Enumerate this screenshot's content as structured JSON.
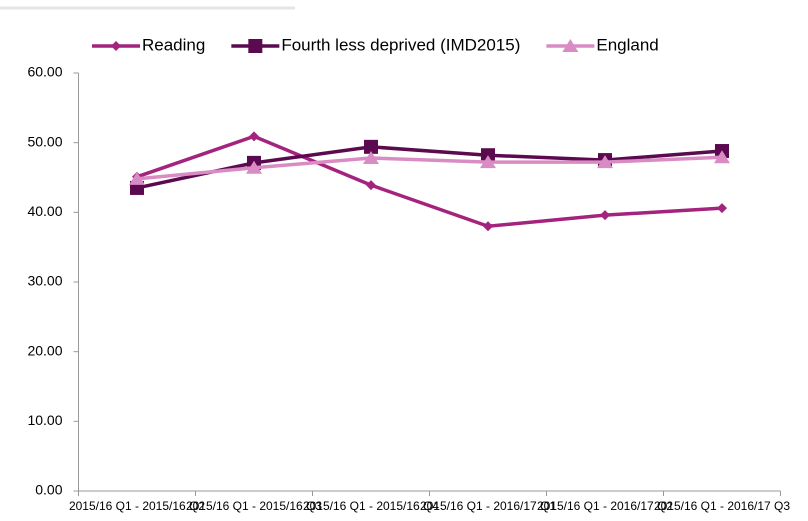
{
  "chart_data": {
    "type": "line",
    "categories": [
      "2015/16 Q1 - 2015/16 Q2",
      "2015/16 Q1 - 2015/16 Q3",
      "2015/16 Q1 - 2015/16 Q4",
      "2015/16 Q1 - 2016/17 Q1",
      "2015/16 Q1 - 2016/17 Q2",
      "2015/16 Q1 - 2016/17 Q3"
    ],
    "series": [
      {
        "name": "Reading",
        "color": "#a3237e",
        "marker": "diamond",
        "values": [
          45.1,
          50.9,
          43.9,
          38.0,
          39.6,
          40.6
        ]
      },
      {
        "name": "Fourth less deprived (IMD2015)",
        "color": "#5c0a4f",
        "marker": "square",
        "values": [
          43.5,
          47.1,
          49.4,
          48.2,
          47.5,
          48.8
        ]
      },
      {
        "name": "England",
        "color": "#d98cc4",
        "marker": "triangle",
        "values": [
          44.8,
          46.4,
          47.8,
          47.2,
          47.2,
          47.9
        ]
      }
    ],
    "ylim": [
      0,
      60
    ],
    "yticks": [
      {
        "value": 0,
        "label": "0.00"
      },
      {
        "value": 10,
        "label": "10.00"
      },
      {
        "value": 20,
        "label": "20.00"
      },
      {
        "value": 30,
        "label": "30.00"
      },
      {
        "value": 40,
        "label": "40.00"
      },
      {
        "value": 50,
        "label": "50.00"
      },
      {
        "value": 60,
        "label": "60.00"
      }
    ],
    "legend": "top"
  }
}
